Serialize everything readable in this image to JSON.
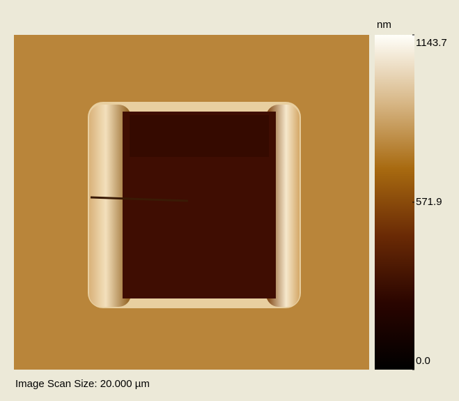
{
  "colorbar": {
    "unit": "nm",
    "ticks": [
      {
        "value": 0,
        "label": "0.0"
      },
      571.9,
      1143.7
    ]
  },
  "footer": "Image Scan Size:  20.000 µm"
}
